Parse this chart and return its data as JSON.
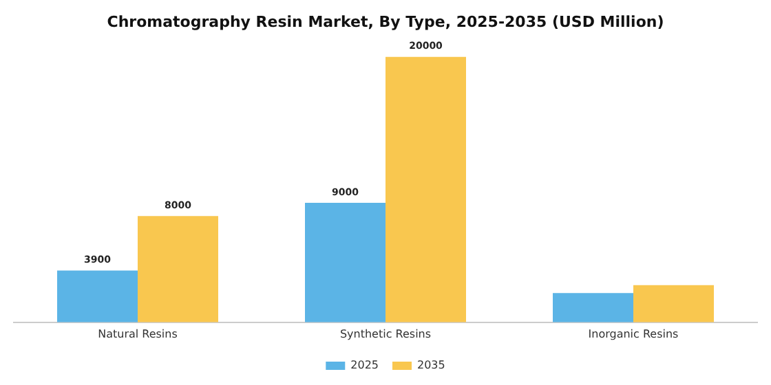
{
  "chart_data": {
    "type": "bar",
    "title": "Chromatography Resin Market, By Type, 2025-2035 (USD Million)",
    "categories": [
      "Natural Resins",
      "Synthetic Resins",
      "Inorganic Resins"
    ],
    "series": [
      {
        "name": "2025",
        "color": "#5bb4e6",
        "values": [
          3900,
          9000,
          2200
        ],
        "value_labels": [
          "3900",
          "9000",
          null
        ]
      },
      {
        "name": "2035",
        "color": "#f9c74f",
        "values": [
          8000,
          20000,
          2800
        ],
        "value_labels": [
          "8000",
          "20000",
          null
        ]
      }
    ],
    "legend": "bottom",
    "grid": false,
    "tick_labels": "x"
  }
}
